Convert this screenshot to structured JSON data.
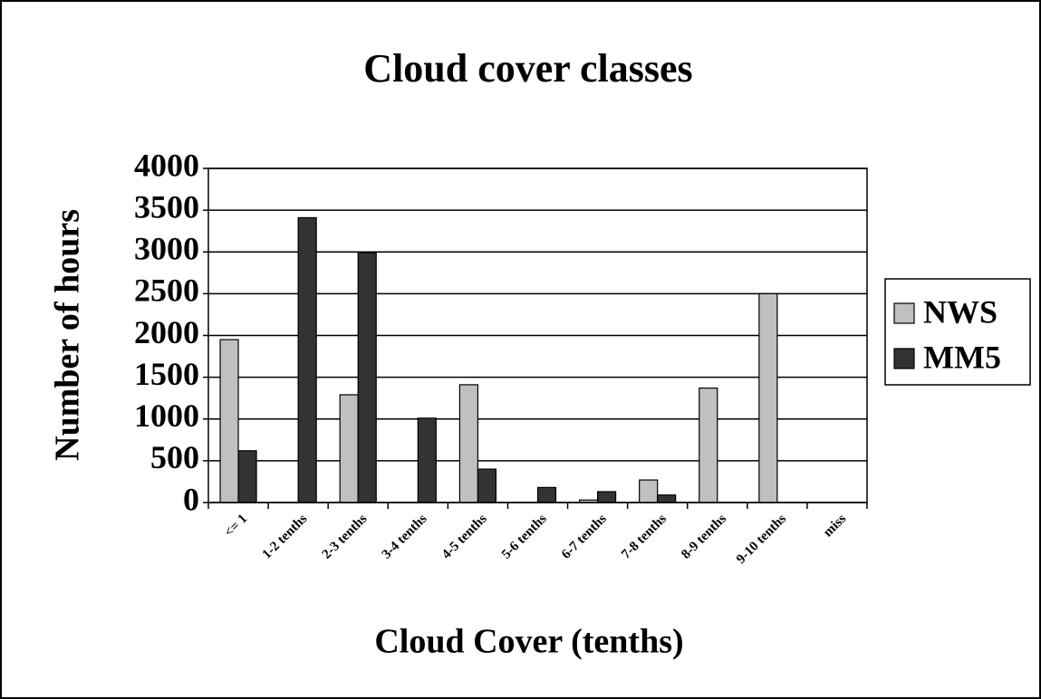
{
  "chart_data": {
    "type": "bar",
    "title": "Cloud cover classes",
    "x_label": "Cloud Cover (tenths)",
    "y_label": "Number of hours",
    "categories": [
      "<= 1",
      "1-2 tenths",
      "2-3 tenths",
      "3-4 tenths",
      "4-5 tenths",
      "5-6 tenths",
      "6-7 tenths",
      "7-8 tenths",
      "8-9 tenths",
      "9-10 tenths",
      "miss"
    ],
    "series": [
      {
        "name": "NWS",
        "color": "#c0c0c0",
        "values": [
          1950,
          0,
          1290,
          0,
          1410,
          0,
          30,
          270,
          1370,
          2500,
          0
        ]
      },
      {
        "name": "MM5",
        "color": "#333333",
        "values": [
          620,
          3410,
          2990,
          1010,
          400,
          180,
          130,
          90,
          0,
          0,
          0
        ]
      }
    ],
    "ylim": [
      0,
      4000
    ],
    "yticks": [
      0,
      500,
      1000,
      1500,
      2000,
      2500,
      3000,
      3500,
      4000
    ],
    "grid": true,
    "legend": "right"
  }
}
